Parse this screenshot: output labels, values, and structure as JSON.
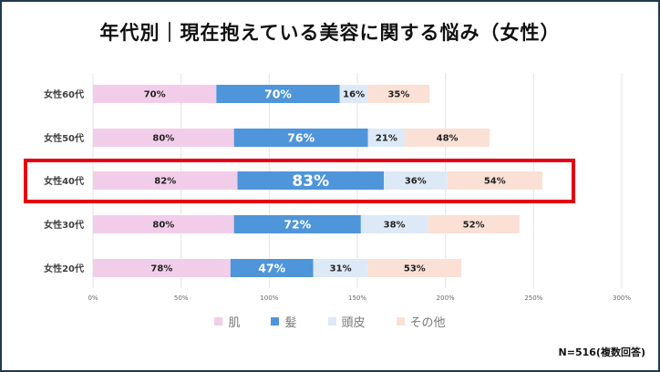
{
  "chart_data": {
    "type": "bar",
    "orientation": "horizontal",
    "stacked": true,
    "title": "年代別｜現在抱えている美容に関する悩み（女性）",
    "categories": [
      "女性60代",
      "女性50代",
      "女性40代",
      "女性30代",
      "女性20代"
    ],
    "series": [
      {
        "name": "肌",
        "values": [
          70,
          80,
          82,
          80,
          78
        ],
        "color": "#f2cdea"
      },
      {
        "name": "髪",
        "values": [
          70,
          76,
          83,
          72,
          47
        ],
        "color": "#4f95da"
      },
      {
        "name": "頭皮",
        "values": [
          16,
          21,
          36,
          38,
          31
        ],
        "color": "#dde9f6"
      },
      {
        "name": "その他",
        "values": [
          35,
          48,
          54,
          52,
          53
        ],
        "color": "#fbe0d5"
      }
    ],
    "xlim": [
      0,
      300
    ],
    "xticks": [
      "0%",
      "50%",
      "100%",
      "150%",
      "200%",
      "250%",
      "300%"
    ],
    "highlight_category": "女性40代",
    "highlight_color": "#e60012",
    "grid": true,
    "legend_position": "bottom"
  },
  "footnote": "N=516(複数回答)"
}
